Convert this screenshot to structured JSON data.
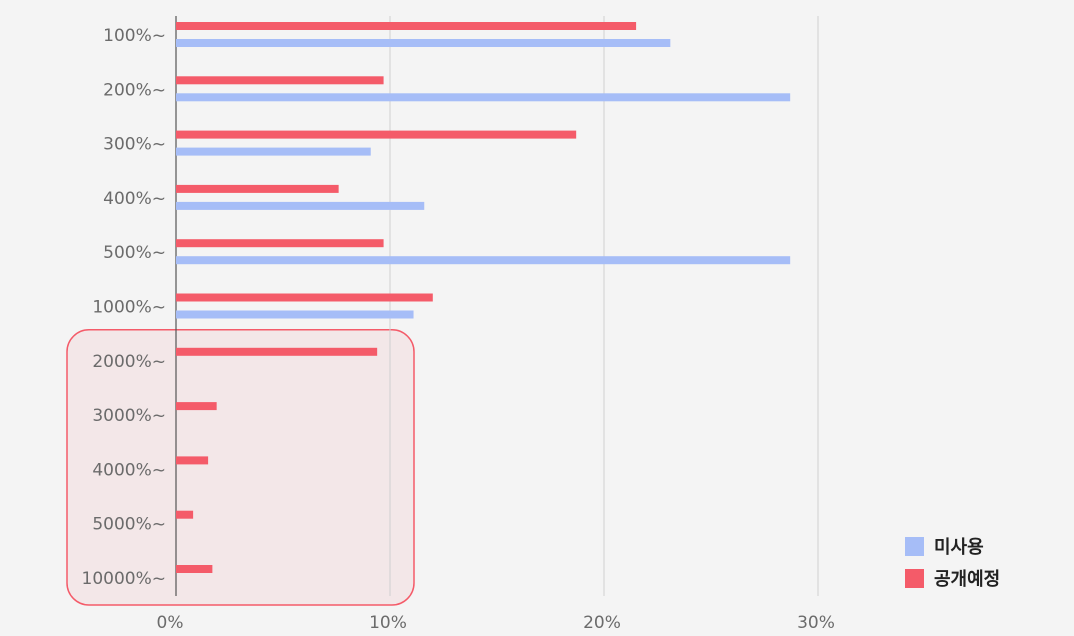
{
  "chart_data": {
    "type": "bar",
    "orientation": "horizontal",
    "categories": [
      "100%~",
      "200%~",
      "300%~",
      "400%~",
      "500%~",
      "1000%~",
      "2000%~",
      "3000%~",
      "4000%~",
      "5000%~",
      "10000%~"
    ],
    "series": [
      {
        "name": "공개예정",
        "color": "#f45b69",
        "values": [
          21.5,
          9.7,
          18.7,
          7.6,
          9.7,
          12.0,
          9.4,
          1.9,
          1.5,
          0.8,
          1.7
        ]
      },
      {
        "name": "미사용",
        "color": "#a6bdf7",
        "values": [
          23.1,
          28.7,
          9.1,
          11.6,
          28.7,
          11.1,
          null,
          null,
          null,
          null,
          null
        ]
      }
    ],
    "x_ticks": [
      "0%",
      "10%",
      "20%",
      "30%"
    ],
    "xlim": [
      0,
      30
    ],
    "grid": true,
    "legend": {
      "placement": "bottom-right",
      "items": [
        {
          "label": "미사용",
          "color": "#a6bdf7"
        },
        {
          "label": "공개예정",
          "color": "#f45b69"
        }
      ]
    },
    "highlight": {
      "categories": [
        "2000%~",
        "3000%~",
        "4000%~",
        "5000%~",
        "10000%~"
      ],
      "color": "#f45b69"
    }
  }
}
